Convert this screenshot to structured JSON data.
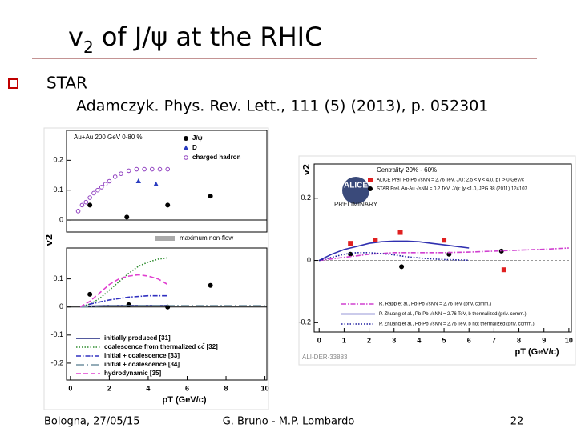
{
  "slide": {
    "title": {
      "main": "v",
      "sub": "2",
      "rest": " of J/ψ at the RHIC"
    },
    "bullet": "STAR",
    "reference": "Adamczyk. Phys. Rev. Lett., 111 (5) (2013), p. 052301",
    "footer": {
      "left": "Bologna, 27/05/15",
      "center": "G. Bruno - M.P. Lombardo",
      "page": "22"
    }
  },
  "chart_data": [
    {
      "type": "line",
      "xlim": [
        -0.2,
        10.1
      ],
      "ylim": [
        -0.04,
        0.3
      ],
      "yticks": [
        0,
        0.1,
        0.2
      ],
      "zero_line": true,
      "annotations": [
        "Au+Au 200 GeV 0-80 %",
        "maximum non-flow"
      ],
      "series": [
        {
          "name": "J/ψ",
          "marker": "circle",
          "color": "#000000",
          "x": [
            1.0,
            2.9,
            5.0,
            7.2
          ],
          "values": [
            0.05,
            0.01,
            0.05,
            0.08
          ]
        },
        {
          "name": "D",
          "marker": "triangle",
          "color": "#2a3cc0",
          "x": [
            3.5,
            4.4
          ],
          "values": [
            0.13,
            0.12
          ]
        },
        {
          "name": "charged hadron",
          "marker": "open-circle",
          "color": "#9040c0",
          "x": [
            0.4,
            0.6,
            0.8,
            1.0,
            1.2,
            1.4,
            1.6,
            1.8,
            2.0,
            2.3,
            2.6,
            3.0,
            3.4,
            3.8,
            4.2,
            4.6,
            5.0
          ],
          "values": [
            0.03,
            0.05,
            0.06,
            0.075,
            0.09,
            0.1,
            0.11,
            0.12,
            0.13,
            0.145,
            0.155,
            0.165,
            0.17,
            0.17,
            0.17,
            0.17,
            0.17
          ]
        }
      ]
    },
    {
      "type": "line",
      "xlim": [
        -0.2,
        10.1
      ],
      "ylim": [
        -0.26,
        0.21
      ],
      "yticks": [
        -0.2,
        -0.1,
        0,
        0.1
      ],
      "xticks": [
        0,
        2,
        4,
        6,
        8,
        10
      ],
      "zero_line": true,
      "xlabel": "pT (GeV/c)",
      "ylabel": "v2",
      "series": [
        {
          "marker": "circle",
          "color": "#000000",
          "x": [
            1.0,
            3.0,
            5.0,
            7.2
          ],
          "values": [
            0.045,
            0.008,
            0.0,
            0.077
          ]
        },
        {
          "name": "initially produced [31]",
          "dash": "solid",
          "color": "#1a237e",
          "x": [
            0.5,
            1,
            2,
            3,
            4,
            5
          ],
          "values": [
            0,
            0.003,
            0.005,
            0.005,
            0.005,
            0.005
          ]
        },
        {
          "name": "coalescence from thermalized cc̄ [32]",
          "dash": "dotted",
          "color": "#2e8b2e",
          "x": [
            0.5,
            1,
            1.5,
            2,
            2.5,
            3,
            3.5,
            4,
            4.5,
            5
          ],
          "values": [
            0.0,
            0.01,
            0.03,
            0.06,
            0.09,
            0.12,
            0.145,
            0.16,
            0.17,
            0.175
          ]
        },
        {
          "name": "initial + coalescence [33]",
          "dash": "dashdot",
          "color": "#3030c0",
          "x": [
            0.5,
            1,
            2,
            3,
            4,
            5
          ],
          "values": [
            0.0,
            0.01,
            0.025,
            0.035,
            0.04,
            0.04
          ]
        },
        {
          "name": "initial + coalescence [34]",
          "dash": "longdashdot",
          "color": "#7090a0",
          "x": [
            0.5,
            2,
            4,
            6,
            8,
            10
          ],
          "values": [
            0,
            0.004,
            0.005,
            0.005,
            0.005,
            0.005
          ]
        },
        {
          "name": "hydrodynamic [35]",
          "dash": "dashed",
          "color": "#e040d0",
          "x": [
            0.5,
            1,
            1.5,
            2,
            2.5,
            3,
            3.5,
            4,
            4.5,
            5
          ],
          "values": [
            0.0,
            0.02,
            0.05,
            0.08,
            0.1,
            0.11,
            0.115,
            0.11,
            0.1,
            0.08
          ]
        }
      ]
    },
    {
      "type": "line",
      "xlim": [
        -0.2,
        10.1
      ],
      "ylim": [
        -0.23,
        0.31
      ],
      "yticks": [
        -0.2,
        0,
        0.2
      ],
      "xticks": [
        0,
        1,
        2,
        3,
        4,
        5,
        6,
        7,
        8,
        9,
        10
      ],
      "zero_line": true,
      "xlabel": "pT (GeV/c)",
      "ylabel": "v2",
      "annotations": [
        "Centrality 20% - 60%",
        "ALI-DER-33883",
        "ALICE",
        "PRELIMINARY"
      ],
      "series": [
        {
          "name": "ALICE Prel. Pb-Pb √sNN = 2.76 TeV, J/ψ: 2.5 < y < 4.0, pT > 0 GeV/c",
          "marker": "square",
          "color": "#e02020",
          "x": [
            1.25,
            2.25,
            3.25,
            5.0,
            7.4
          ],
          "values": [
            0.055,
            0.065,
            0.09,
            0.065,
            -0.03
          ]
        },
        {
          "name": "STAR Prel. Au-Au √sNN = 0.2 TeV, J/ψ: |y|<1.0, JPG 38 (2011) 124107",
          "marker": "circle",
          "color": "#000000",
          "x": [
            1.25,
            3.3,
            5.2,
            7.3
          ],
          "values": [
            0.02,
            -0.02,
            0.02,
            0.03
          ]
        },
        {
          "name": "R. Rapp et al., Pb-Pb √sNN = 2.76 TeV (priv. comm.)",
          "dash": "dashdot",
          "color": "#d040d0",
          "x": [
            0,
            1,
            2,
            3,
            4,
            5,
            6,
            7,
            8,
            9,
            10
          ],
          "values": [
            0.0,
            0.01,
            0.02,
            0.025,
            0.025,
            0.025,
            0.027,
            0.03,
            0.033,
            0.036,
            0.04
          ]
        },
        {
          "name": "P. Zhuang et al., Pb-Pb √sNN = 2.76 TeV, b thermalized (priv. comm.)",
          "dash": "solid",
          "color": "#3030b0",
          "x": [
            0,
            0.5,
            1,
            1.5,
            2,
            2.5,
            3,
            3.5,
            4,
            4.5,
            5,
            5.5,
            6
          ],
          "values": [
            0,
            0.02,
            0.035,
            0.045,
            0.055,
            0.06,
            0.062,
            0.062,
            0.06,
            0.055,
            0.05,
            0.045,
            0.04
          ]
        },
        {
          "name": "P. Zhuang et al., Pb-Pb √sNN = 2.76 TeV, b not thermalized (priv. comm.)",
          "dash": "dotted",
          "color": "#2020a0",
          "x": [
            0,
            0.5,
            1,
            1.5,
            2,
            2.5,
            3,
            3.5,
            4,
            4.5,
            5,
            5.5,
            6
          ],
          "values": [
            0,
            0.01,
            0.02,
            0.025,
            0.025,
            0.022,
            0.018,
            0.012,
            0.008,
            0.005,
            0.003,
            0.002,
            0.001
          ]
        }
      ]
    }
  ]
}
